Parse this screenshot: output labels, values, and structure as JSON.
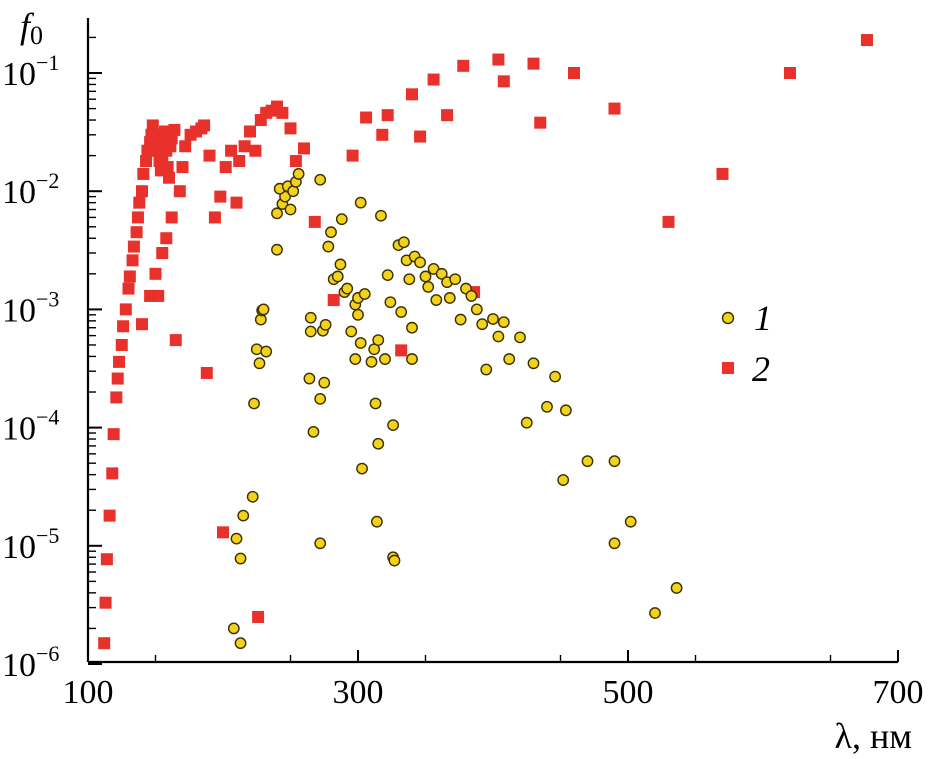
{
  "chart_data": {
    "type": "scatter",
    "xlabel": "λ, нм",
    "ylabel": "f₀",
    "xlim": [
      100,
      700
    ],
    "ylim_log10": [
      -6,
      -1.3
    ],
    "yscale": "log",
    "x_ticks": [
      100,
      300,
      500,
      700
    ],
    "x_tick_labels": [
      "100",
      "300",
      "500",
      "700"
    ],
    "y_ticks": [
      {
        "exp": -6,
        "base": "10",
        "sup": "−6"
      },
      {
        "exp": -5,
        "base": "10",
        "sup": "−5"
      },
      {
        "exp": -4,
        "base": "10",
        "sup": "−4"
      },
      {
        "exp": -3,
        "base": "10",
        "sup": "−3"
      },
      {
        "exp": -2,
        "base": "10",
        "sup": "−2"
      },
      {
        "exp": -1,
        "base": "10",
        "sup": "−1"
      }
    ],
    "grid": false,
    "legend_position": "right",
    "colors": {
      "series1_fill": "#f2d21c",
      "series1_edge": "#3a3000",
      "series2": "#e8312a"
    },
    "series": [
      {
        "name": "1",
        "marker": "circle",
        "points": [
          [
            213,
            1.5e-06
          ],
          [
            208,
            2e-06
          ],
          [
            213,
            7.8e-06
          ],
          [
            210,
            1.15e-05
          ],
          [
            215,
            1.8e-05
          ],
          [
            222,
            2.6e-05
          ],
          [
            223,
            0.00016
          ],
          [
            227,
            0.00035
          ],
          [
            225,
            0.00046
          ],
          [
            232,
            0.00044
          ],
          [
            228,
            0.00082
          ],
          [
            229,
            0.00098
          ],
          [
            230,
            0.001
          ],
          [
            240,
            0.0032
          ],
          [
            240,
            0.0065
          ],
          [
            244,
            0.0078
          ],
          [
            246,
            0.009
          ],
          [
            242,
            0.0105
          ],
          [
            248,
            0.011
          ],
          [
            252,
            0.01
          ],
          [
            254,
            0.012
          ],
          [
            256,
            0.014
          ],
          [
            250,
            0.007
          ],
          [
            265,
            0.00065
          ],
          [
            265,
            0.00085
          ],
          [
            267,
            9.2e-05
          ],
          [
            264,
            0.00026
          ],
          [
            272,
            0.000175
          ],
          [
            275,
            0.00024
          ],
          [
            272,
            1.05e-05
          ],
          [
            272,
            0.0125
          ],
          [
            274,
            0.00066
          ],
          [
            276,
            0.00074
          ],
          [
            278,
            0.0034
          ],
          [
            280,
            0.0045
          ],
          [
            282,
            0.0018
          ],
          [
            285,
            0.0019
          ],
          [
            287,
            0.0024
          ],
          [
            288,
            0.0058
          ],
          [
            290,
            0.0014
          ],
          [
            292,
            0.0015
          ],
          [
            295,
            0.00065
          ],
          [
            298,
            0.00038
          ],
          [
            298,
            0.0011
          ],
          [
            300,
            0.00125
          ],
          [
            300,
            0.0009
          ],
          [
            302,
            0.008
          ],
          [
            302,
            0.00052
          ],
          [
            303,
            4.5e-05
          ],
          [
            305,
            0.00135
          ],
          [
            310,
            0.00036
          ],
          [
            312,
            0.00046
          ],
          [
            313,
            0.00016
          ],
          [
            314,
            1.6e-05
          ],
          [
            315,
            7.3e-05
          ],
          [
            315,
            0.00055
          ],
          [
            317,
            0.0062
          ],
          [
            320,
            0.00038
          ],
          [
            322,
            0.00195
          ],
          [
            324,
            0.00115
          ],
          [
            326,
            0.000105
          ],
          [
            326,
            8e-06
          ],
          [
            327,
            7.5e-06
          ],
          [
            330,
            0.0035
          ],
          [
            332,
            0.00095
          ],
          [
            334,
            0.0037
          ],
          [
            336,
            0.0026
          ],
          [
            338,
            0.0018
          ],
          [
            340,
            0.0007
          ],
          [
            340,
            0.00038
          ],
          [
            342,
            0.0028
          ],
          [
            346,
            0.0025
          ],
          [
            350,
            0.0019
          ],
          [
            352,
            0.00155
          ],
          [
            356,
            0.0022
          ],
          [
            358,
            0.0012
          ],
          [
            362,
            0.002
          ],
          [
            366,
            0.0017
          ],
          [
            368,
            0.00125
          ],
          [
            372,
            0.0018
          ],
          [
            376,
            0.00082
          ],
          [
            380,
            0.0015
          ],
          [
            384,
            0.0013
          ],
          [
            388,
            0.001
          ],
          [
            392,
            0.00075
          ],
          [
            395,
            0.00031
          ],
          [
            400,
            0.00083
          ],
          [
            404,
            0.00059
          ],
          [
            408,
            0.00078
          ],
          [
            412,
            0.00038
          ],
          [
            420,
            0.00058
          ],
          [
            425,
            0.00011
          ],
          [
            430,
            0.00035
          ],
          [
            440,
            0.00015
          ],
          [
            446,
            0.00027
          ],
          [
            452,
            3.6e-05
          ],
          [
            454,
            0.00014
          ],
          [
            470,
            5.2e-05
          ],
          [
            490,
            5.2e-05
          ],
          [
            490,
            1.05e-05
          ],
          [
            502,
            1.6e-05
          ],
          [
            520,
            2.7e-06
          ],
          [
            536,
            4.4e-06
          ]
        ]
      },
      {
        "name": "2",
        "marker": "square",
        "points": [
          [
            112,
            1.5e-06
          ],
          [
            113,
            3.3e-06
          ],
          [
            114,
            7.7e-06
          ],
          [
            116,
            1.8e-05
          ],
          [
            118,
            4.1e-05
          ],
          [
            119,
            8.8e-05
          ],
          [
            121,
            0.00018
          ],
          [
            122,
            0.00026
          ],
          [
            123,
            0.00036
          ],
          [
            125,
            0.0005
          ],
          [
            126,
            0.00072
          ],
          [
            128,
            0.001
          ],
          [
            130,
            0.0015
          ],
          [
            131,
            0.0019
          ],
          [
            133,
            0.0026
          ],
          [
            134,
            0.0034
          ],
          [
            136,
            0.0045
          ],
          [
            137,
            0.006
          ],
          [
            138,
            0.008
          ],
          [
            140,
            0.01
          ],
          [
            141,
            0.014
          ],
          [
            143,
            0.018
          ],
          [
            144,
            0.022
          ],
          [
            146,
            0.026
          ],
          [
            147,
            0.03
          ],
          [
            148,
            0.036
          ],
          [
            150,
            0.03
          ],
          [
            151,
            0.026
          ],
          [
            152,
            0.022
          ],
          [
            153,
            0.018
          ],
          [
            154,
            0.015
          ],
          [
            155,
            0.02
          ],
          [
            156,
            0.026
          ],
          [
            157,
            0.032
          ],
          [
            158,
            0.022
          ],
          [
            159,
            0.016
          ],
          [
            160,
            0.013
          ],
          [
            161,
            0.024
          ],
          [
            162,
            0.028
          ],
          [
            164,
            0.033
          ],
          [
            140,
            0.00075
          ],
          [
            146,
            0.0013
          ],
          [
            150,
            0.002
          ],
          [
            152,
            0.0013
          ],
          [
            155,
            0.003
          ],
          [
            158,
            0.004
          ],
          [
            162,
            0.006
          ],
          [
            165,
            0.00055
          ],
          [
            168,
            0.01
          ],
          [
            170,
            0.016
          ],
          [
            172,
            0.024
          ],
          [
            176,
            0.03
          ],
          [
            180,
            0.032
          ],
          [
            184,
            0.034
          ],
          [
            186,
            0.036
          ],
          [
            188,
            0.00029
          ],
          [
            190,
            0.02
          ],
          [
            194,
            0.006
          ],
          [
            198,
            0.009
          ],
          [
            200,
            1.3e-05
          ],
          [
            202,
            0.016
          ],
          [
            206,
            0.022
          ],
          [
            210,
            0.008
          ],
          [
            212,
            0.018
          ],
          [
            216,
            0.024
          ],
          [
            220,
            0.032
          ],
          [
            224,
            0.022
          ],
          [
            226,
            2.5e-06
          ],
          [
            228,
            0.04
          ],
          [
            232,
            0.046
          ],
          [
            236,
            0.048
          ],
          [
            240,
            0.052
          ],
          [
            244,
            0.046
          ],
          [
            250,
            0.034
          ],
          [
            254,
            0.018
          ],
          [
            260,
            0.023
          ],
          [
            268,
            0.0055
          ],
          [
            282,
            0.0012
          ],
          [
            296,
            0.02
          ],
          [
            306,
            0.042
          ],
          [
            318,
            0.03
          ],
          [
            322,
            0.044
          ],
          [
            332,
            0.00045
          ],
          [
            340,
            0.066
          ],
          [
            346,
            0.029
          ],
          [
            356,
            0.088
          ],
          [
            366,
            0.044
          ],
          [
            378,
            0.115
          ],
          [
            386,
            0.0014
          ],
          [
            404,
            0.13
          ],
          [
            408,
            0.085
          ],
          [
            430,
            0.12
          ],
          [
            435,
            0.038
          ],
          [
            460,
            0.1
          ],
          [
            490,
            0.05
          ],
          [
            530,
            0.0055
          ],
          [
            570,
            0.014
          ],
          [
            620,
            0.1
          ],
          [
            677,
            0.19
          ]
        ]
      }
    ],
    "legend": [
      {
        "label": "1",
        "marker": "circle"
      },
      {
        "label": "2",
        "marker": "square"
      }
    ]
  }
}
